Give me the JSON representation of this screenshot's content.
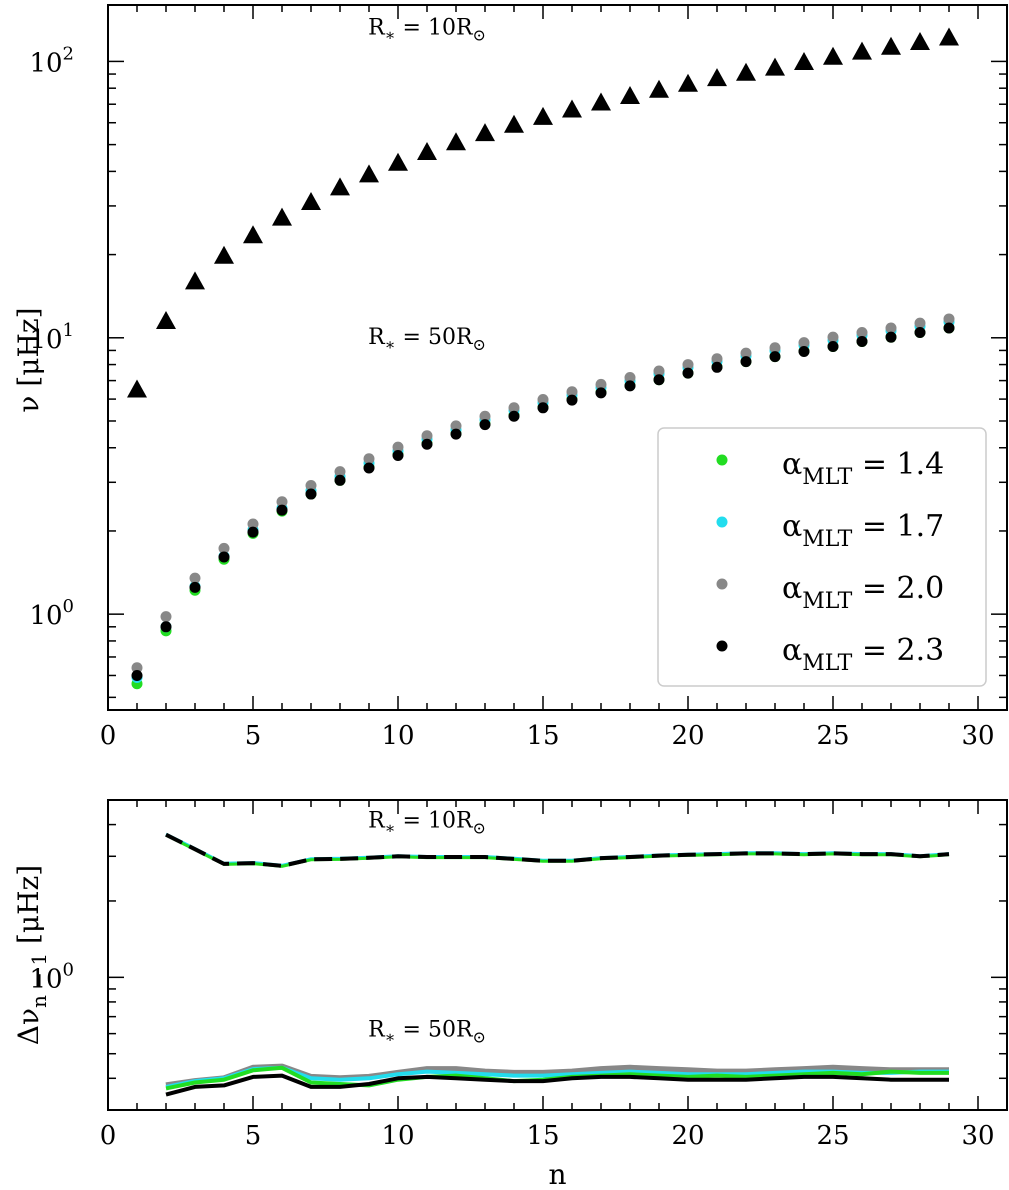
{
  "colors": {
    "a14": "#22dd22",
    "a17": "#22ddee",
    "a20": "#888888",
    "a23": "#000000"
  },
  "chart_data": [
    {
      "type": "scatter",
      "xlabel": "",
      "ylabel": {
        "main": "ν",
        "unit": "[μHz]"
      },
      "yscale": "log",
      "xlim": [
        0,
        31
      ],
      "ylim": [
        0.45,
        160
      ],
      "xticks": [
        "0",
        "5",
        "10",
        "15",
        "20",
        "25",
        "30"
      ],
      "yticks": [
        {
          "base": "10",
          "exp": "0"
        },
        {
          "base": "10",
          "exp": "1"
        },
        {
          "base": "10",
          "exp": "2"
        }
      ],
      "annotations": [
        {
          "text": "R",
          "sub": "∗",
          "rest": " = 10R",
          "sun": "⊙",
          "x": 11.0,
          "y": 125
        },
        {
          "text": "R",
          "sub": "∗",
          "rest": " = 50R",
          "sun": "⊙",
          "x": 11.0,
          "y": 9.5
        }
      ],
      "legend": {
        "position": "right",
        "entries": [
          {
            "label": "α",
            "sub": "MLT",
            "value": " = 1.4",
            "color": "#22dd22"
          },
          {
            "label": "α",
            "sub": "MLT",
            "value": " = 1.7",
            "color": "#22ddee"
          },
          {
            "label": "α",
            "sub": "MLT",
            "value": " = 2.0",
            "color": "#888888"
          },
          {
            "label": "α",
            "sub": "MLT",
            "value": " = 2.3",
            "color": "#000000"
          }
        ]
      },
      "series_10Rsun": {
        "marker": "triangle",
        "x": [
          1,
          2,
          3,
          4,
          5,
          6,
          7,
          8,
          9,
          10,
          11,
          12,
          13,
          14,
          15,
          16,
          17,
          18,
          19,
          20,
          21,
          22,
          23,
          24,
          25,
          26,
          27,
          28,
          29
        ],
        "y": [
          6.5,
          11.5,
          16.0,
          19.8,
          23.5,
          27.2,
          31.0,
          35.0,
          39.0,
          43.0,
          47.0,
          51.0,
          55.0,
          59.0,
          63.0,
          67.0,
          71.0,
          75.0,
          79.0,
          83.0,
          87.0,
          91.0,
          95.0,
          99.5,
          104.0,
          108.5,
          113.0,
          117.5,
          122.0
        ]
      },
      "series_50Rsun": [
        {
          "name": "α_MLT = 1.4",
          "color": "#22dd22",
          "x": [
            1,
            2,
            3,
            4,
            5,
            6,
            7,
            8,
            9,
            10,
            11,
            12,
            13,
            14,
            15,
            16,
            17,
            18,
            19,
            20,
            21,
            22,
            23,
            24,
            25,
            26,
            27,
            28,
            29
          ],
          "y": [
            0.56,
            0.87,
            1.22,
            1.58,
            1.96,
            2.36,
            2.72,
            3.05,
            3.4,
            3.78,
            4.15,
            4.5,
            4.88,
            5.25,
            5.6,
            6.0,
            6.35,
            6.72,
            7.05,
            7.45,
            7.85,
            8.2,
            8.55,
            8.95,
            9.3,
            9.7,
            10.05,
            10.45,
            10.85
          ]
        },
        {
          "name": "α_MLT = 1.7",
          "color": "#22ddee",
          "x": [
            1,
            2,
            3,
            4,
            5,
            6,
            7,
            8,
            9,
            10,
            11,
            12,
            13,
            14,
            15,
            16,
            17,
            18,
            19,
            20,
            21,
            22,
            23,
            24,
            25,
            26,
            27,
            28,
            29
          ],
          "y": [
            0.59,
            0.9,
            1.26,
            1.62,
            2.02,
            2.42,
            2.8,
            3.15,
            3.52,
            3.9,
            4.3,
            4.65,
            5.05,
            5.45,
            5.82,
            6.2,
            6.6,
            6.98,
            7.4,
            7.8,
            8.2,
            8.58,
            8.98,
            9.4,
            9.8,
            10.2,
            10.6,
            11.0,
            11.4
          ]
        },
        {
          "name": "α_MLT = 2.0",
          "color": "#888888",
          "x": [
            1,
            2,
            3,
            4,
            5,
            6,
            7,
            8,
            9,
            10,
            11,
            12,
            13,
            14,
            15,
            16,
            17,
            18,
            19,
            20,
            21,
            22,
            23,
            24,
            25,
            26,
            27,
            28,
            29
          ],
          "y": [
            0.64,
            0.98,
            1.35,
            1.73,
            2.12,
            2.55,
            2.92,
            3.28,
            3.65,
            4.02,
            4.42,
            4.8,
            5.2,
            5.58,
            5.98,
            6.38,
            6.78,
            7.18,
            7.58,
            8.0,
            8.4,
            8.8,
            9.2,
            9.6,
            10.05,
            10.45,
            10.85,
            11.3,
            11.7
          ]
        },
        {
          "name": "α_MLT = 2.3",
          "color": "#000000",
          "x": [
            1,
            2,
            3,
            4,
            5,
            6,
            7,
            8,
            9,
            10,
            11,
            12,
            13,
            14,
            15,
            16,
            17,
            18,
            19,
            20,
            21,
            22,
            23,
            24,
            25,
            26,
            27,
            28,
            29
          ],
          "y": [
            0.6,
            0.9,
            1.25,
            1.61,
            1.98,
            2.38,
            2.72,
            3.05,
            3.38,
            3.75,
            4.12,
            4.48,
            4.85,
            5.2,
            5.58,
            5.95,
            6.32,
            6.7,
            7.05,
            7.45,
            7.82,
            8.2,
            8.55,
            8.92,
            9.3,
            9.7,
            10.05,
            10.45,
            10.85
          ]
        }
      ]
    },
    {
      "type": "line",
      "xlabel": "n",
      "ylabel": {
        "main": "Δν",
        "sub": "n − 1",
        "unit": "[μHz]"
      },
      "yscale": "log",
      "xlim": [
        0,
        31
      ],
      "ylim": [
        0.3,
        5.0
      ],
      "xticks": [
        "0",
        "5",
        "10",
        "15",
        "20",
        "25",
        "30"
      ],
      "yticks": [
        {
          "base": "10",
          "exp": "0"
        }
      ],
      "annotations": [
        {
          "text": "R",
          "sub": "∗",
          "rest": " = 10R",
          "sun": "⊙",
          "x": 11.0,
          "y": 3.9
        },
        {
          "text": "R",
          "sub": "∗",
          "rest": " = 50R",
          "sun": "⊙",
          "x": 11.0,
          "y": 0.585
        }
      ],
      "series_10Rsun": {
        "style": "dashed",
        "x": [
          2,
          3,
          4,
          5,
          6,
          7,
          8,
          9,
          10,
          11,
          12,
          13,
          14,
          15,
          16,
          17,
          18,
          19,
          20,
          21,
          22,
          23,
          24,
          25,
          26,
          27,
          28,
          29
        ],
        "y": [
          3.65,
          3.2,
          2.8,
          2.82,
          2.75,
          2.92,
          2.93,
          2.96,
          3.0,
          2.98,
          2.98,
          2.98,
          2.93,
          2.88,
          2.88,
          2.95,
          2.98,
          3.02,
          3.04,
          3.06,
          3.08,
          3.08,
          3.06,
          3.08,
          3.06,
          3.06,
          3.0,
          3.06
        ]
      },
      "series_50Rsun": [
        {
          "name": "α_MLT = 1.4",
          "color": "#22dd22",
          "x": [
            2,
            3,
            4,
            5,
            6,
            7,
            8,
            9,
            10,
            11,
            12,
            13,
            14,
            15,
            16,
            17,
            18,
            19,
            20,
            21,
            22,
            23,
            24,
            25,
            26,
            27,
            28,
            29
          ],
          "y": [
            0.365,
            0.385,
            0.395,
            0.43,
            0.44,
            0.385,
            0.38,
            0.375,
            0.395,
            0.405,
            0.41,
            0.4,
            0.39,
            0.395,
            0.405,
            0.41,
            0.415,
            0.41,
            0.405,
            0.41,
            0.405,
            0.41,
            0.415,
            0.42,
            0.415,
            0.425,
            0.42,
            0.42
          ]
        },
        {
          "name": "α_MLT = 1.7",
          "color": "#22ddee",
          "x": [
            2,
            3,
            4,
            5,
            6,
            7,
            8,
            9,
            10,
            11,
            12,
            13,
            14,
            15,
            16,
            17,
            18,
            19,
            20,
            21,
            22,
            23,
            24,
            25,
            26,
            27,
            28,
            29
          ],
          "y": [
            0.37,
            0.39,
            0.4,
            0.435,
            0.44,
            0.4,
            0.395,
            0.4,
            0.415,
            0.425,
            0.42,
            0.415,
            0.41,
            0.41,
            0.415,
            0.42,
            0.425,
            0.42,
            0.415,
            0.415,
            0.415,
            0.42,
            0.425,
            0.425,
            0.42,
            0.42,
            0.425,
            0.425
          ]
        },
        {
          "name": "α_MLT = 2.0",
          "color": "#888888",
          "x": [
            2,
            3,
            4,
            5,
            6,
            7,
            8,
            9,
            10,
            11,
            12,
            13,
            14,
            15,
            16,
            17,
            18,
            19,
            20,
            21,
            22,
            23,
            24,
            25,
            26,
            27,
            28,
            29
          ],
          "y": [
            0.375,
            0.39,
            0.4,
            0.44,
            0.445,
            0.405,
            0.4,
            0.405,
            0.42,
            0.435,
            0.435,
            0.425,
            0.42,
            0.42,
            0.425,
            0.435,
            0.44,
            0.435,
            0.43,
            0.425,
            0.425,
            0.43,
            0.435,
            0.44,
            0.435,
            0.43,
            0.43,
            0.43
          ]
        },
        {
          "name": "α_MLT = 2.3",
          "color": "#000000",
          "x": [
            2,
            3,
            4,
            5,
            6,
            7,
            8,
            9,
            10,
            11,
            12,
            13,
            14,
            15,
            16,
            17,
            18,
            19,
            20,
            21,
            22,
            23,
            24,
            25,
            26,
            27,
            28,
            29
          ],
          "y": [
            0.345,
            0.37,
            0.375,
            0.405,
            0.41,
            0.37,
            0.37,
            0.38,
            0.4,
            0.405,
            0.4,
            0.395,
            0.39,
            0.39,
            0.4,
            0.405,
            0.405,
            0.4,
            0.395,
            0.395,
            0.395,
            0.4,
            0.405,
            0.405,
            0.4,
            0.395,
            0.395,
            0.395
          ]
        }
      ]
    }
  ]
}
